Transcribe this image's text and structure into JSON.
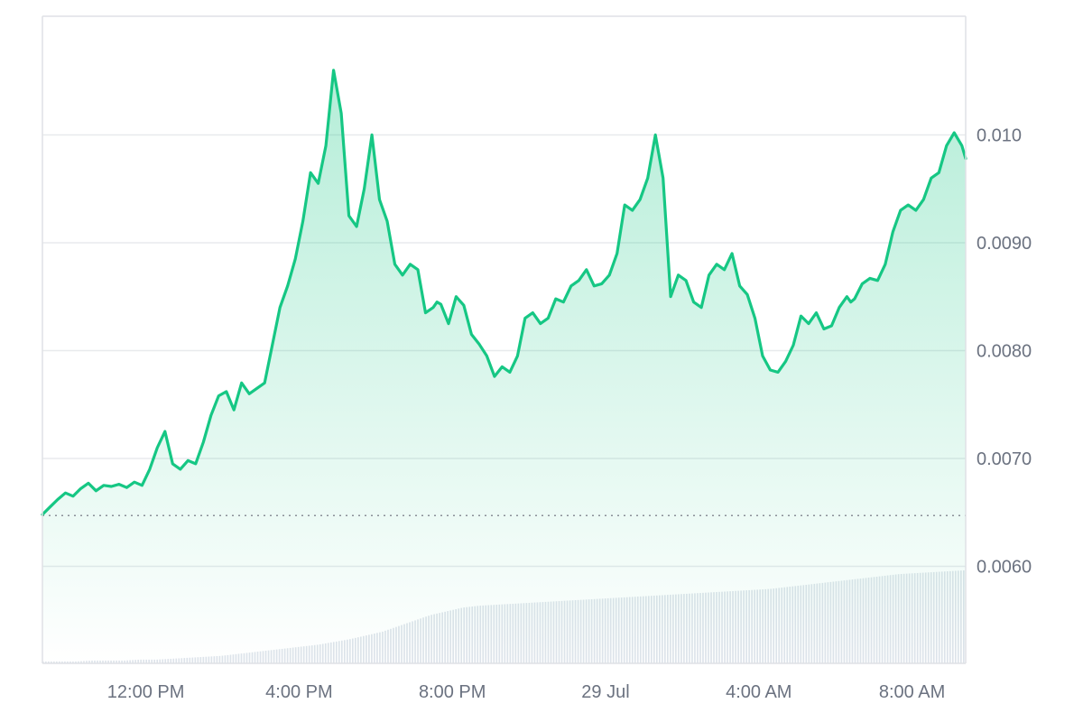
{
  "colors": {
    "line": "#16c784",
    "area_top": "#16c784",
    "grid": "#e8eaed",
    "frame": "#dfe1e5",
    "baseline": "#8a8f98",
    "volume": "#dde3ea",
    "tick_text": "#6b7280"
  },
  "chart_data": {
    "type": "area",
    "title": "",
    "xlabel": "",
    "ylabel": "",
    "ylim": [
      0.0051,
      0.0111
    ],
    "grid": true,
    "y_ticks": [
      {
        "value": 0.006,
        "label": "0.0060"
      },
      {
        "value": 0.007,
        "label": "0.0070"
      },
      {
        "value": 0.008,
        "label": "0.0080"
      },
      {
        "value": 0.009,
        "label": "0.0090"
      },
      {
        "value": 0.01,
        "label": "0.010"
      }
    ],
    "x_ticks": [
      {
        "hour": 12,
        "label": "12:00 PM"
      },
      {
        "hour": 16,
        "label": "4:00 PM"
      },
      {
        "hour": 20,
        "label": "8:00 PM"
      },
      {
        "hour": 24,
        "label": "29 Jul"
      },
      {
        "hour": 28,
        "label": "4:00 AM"
      },
      {
        "hour": 32,
        "label": "8:00 AM"
      }
    ],
    "x_range_hours": [
      9.3,
      33.4
    ],
    "baseline_value": 0.00647,
    "series": [
      {
        "x_hours": [
          9.3,
          9.5,
          9.7,
          9.9,
          10.1,
          10.3,
          10.5,
          10.7,
          10.9,
          11.1,
          11.3,
          11.5,
          11.7,
          11.9,
          12.1,
          12.3,
          12.5,
          12.7,
          12.9,
          13.1,
          13.3,
          13.5,
          13.7,
          13.9,
          14.1,
          14.3,
          14.5,
          14.7,
          14.9,
          15.1,
          15.3,
          15.5,
          15.7,
          15.9,
          16.1,
          16.3,
          16.5,
          16.7,
          16.9,
          17.1,
          17.3,
          17.5,
          17.7,
          17.9,
          18.1,
          18.3,
          18.5,
          18.7,
          18.9,
          19.1,
          19.3,
          19.5,
          19.6,
          19.7,
          19.9,
          20.1,
          20.3,
          20.5,
          20.7,
          20.9,
          21.1,
          21.3,
          21.5,
          21.7,
          21.9,
          22.1,
          22.3,
          22.5,
          22.7,
          22.9,
          23.1,
          23.3,
          23.5,
          23.7,
          23.9,
          24.1,
          24.3,
          24.5,
          24.7,
          24.9,
          25.1,
          25.3,
          25.5,
          25.7,
          25.9,
          26.1,
          26.3,
          26.5,
          26.7,
          26.9,
          27.1,
          27.3,
          27.5,
          27.7,
          27.9,
          28.1,
          28.3,
          28.5,
          28.7,
          28.9,
          29.1,
          29.3,
          29.5,
          29.7,
          29.9,
          30.1,
          30.3,
          30.4,
          30.5,
          30.7,
          30.9,
          31.1,
          31.3,
          31.5,
          31.7,
          31.9,
          32.1,
          32.3,
          32.5,
          32.7,
          32.9,
          33.1,
          33.3,
          33.4
        ],
        "values": [
          0.00648,
          0.00655,
          0.00662,
          0.00668,
          0.00665,
          0.00672,
          0.00677,
          0.0067,
          0.00675,
          0.00674,
          0.00676,
          0.00673,
          0.00678,
          0.00675,
          0.0069,
          0.0071,
          0.00725,
          0.00695,
          0.0069,
          0.00698,
          0.00695,
          0.00715,
          0.0074,
          0.00758,
          0.00762,
          0.00745,
          0.0077,
          0.0076,
          0.00765,
          0.0077,
          0.00805,
          0.0084,
          0.0086,
          0.00885,
          0.0092,
          0.00965,
          0.00955,
          0.0099,
          0.0106,
          0.0102,
          0.00925,
          0.00915,
          0.0095,
          0.01,
          0.0094,
          0.0092,
          0.0088,
          0.0087,
          0.0088,
          0.00875,
          0.00835,
          0.0084,
          0.00845,
          0.00843,
          0.00825,
          0.0085,
          0.00842,
          0.00815,
          0.00806,
          0.00795,
          0.00776,
          0.00785,
          0.0078,
          0.00795,
          0.0083,
          0.00835,
          0.00825,
          0.0083,
          0.00848,
          0.00845,
          0.0086,
          0.00865,
          0.00875,
          0.0086,
          0.00862,
          0.0087,
          0.0089,
          0.00935,
          0.0093,
          0.0094,
          0.0096,
          0.01,
          0.0096,
          0.0085,
          0.0087,
          0.00865,
          0.00845,
          0.0084,
          0.0087,
          0.0088,
          0.00875,
          0.0089,
          0.0086,
          0.00852,
          0.0083,
          0.00795,
          0.00782,
          0.0078,
          0.0079,
          0.00805,
          0.00832,
          0.00825,
          0.00835,
          0.0082,
          0.00823,
          0.0084,
          0.0085,
          0.00845,
          0.00848,
          0.00862,
          0.00867,
          0.00865,
          0.0088,
          0.0091,
          0.0093,
          0.00935,
          0.0093,
          0.0094,
          0.0096,
          0.00965,
          0.0099,
          0.01002,
          0.0099,
          0.00978
        ]
      }
    ],
    "volume_fraction": [
      0.02,
      0.02,
      0.02,
      0.03,
      0.03,
      0.03,
      0.04,
      0.04,
      0.05,
      0.06,
      0.07,
      0.08,
      0.1,
      0.12,
      0.14,
      0.16,
      0.18,
      0.2,
      0.23,
      0.26,
      0.3,
      0.34,
      0.4,
      0.46,
      0.52,
      0.56,
      0.6,
      0.62,
      0.63,
      0.64,
      0.65,
      0.66,
      0.67,
      0.68,
      0.69,
      0.7,
      0.71,
      0.72,
      0.73,
      0.74,
      0.75,
      0.76,
      0.77,
      0.78,
      0.79,
      0.8,
      0.82,
      0.84,
      0.86,
      0.88,
      0.9,
      0.92,
      0.94,
      0.96,
      0.97,
      0.98,
      0.99,
      1.0
    ]
  }
}
